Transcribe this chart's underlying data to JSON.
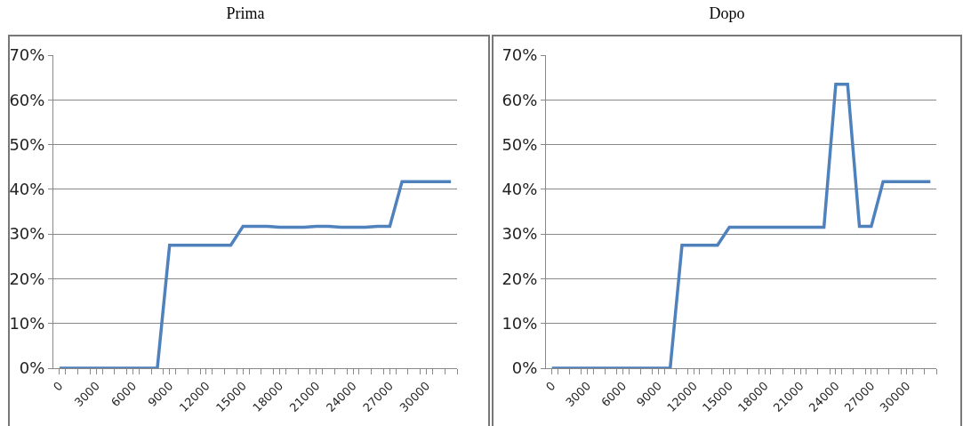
{
  "chart_data": [
    {
      "type": "line",
      "title": "Prima",
      "categories": [
        "0",
        null,
        null,
        "3000",
        null,
        null,
        "6000",
        null,
        null,
        "9000",
        null,
        null,
        "12000",
        null,
        null,
        "15000",
        null,
        null,
        "18000",
        null,
        null,
        "21000",
        null,
        null,
        "24000",
        null,
        null,
        "27000",
        null,
        null,
        "30000",
        null,
        null
      ],
      "series": [
        {
          "color": "#4f81bd",
          "values": [
            0,
            0,
            0,
            0,
            0,
            0,
            0,
            0,
            0,
            27.5,
            27.5,
            27.5,
            27.5,
            27.5,
            27.5,
            31.7,
            31.7,
            31.7,
            31.5,
            31.5,
            31.5,
            31.7,
            31.7,
            31.5,
            31.5,
            31.5,
            31.7,
            31.7,
            41.7,
            41.7,
            41.7,
            41.7,
            41.7
          ]
        }
      ],
      "ylim": [
        0,
        70
      ],
      "yticks": [
        {
          "value": 0,
          "label": "0%"
        },
        {
          "value": 10,
          "label": "10%"
        },
        {
          "value": 20,
          "label": "20%"
        },
        {
          "value": 30,
          "label": "30%"
        },
        {
          "value": 40,
          "label": "40%"
        },
        {
          "value": 50,
          "label": "50%"
        },
        {
          "value": 60,
          "label": "60%"
        },
        {
          "value": 70,
          "label": "70%"
        }
      ],
      "grid": "y",
      "marker": "none",
      "line_style": "solid"
    },
    {
      "type": "line",
      "title": "Dopo",
      "categories": [
        "0",
        null,
        null,
        "3000",
        null,
        null,
        "6000",
        null,
        null,
        "9000",
        null,
        null,
        "12000",
        null,
        null,
        "15000",
        null,
        null,
        "18000",
        null,
        null,
        "21000",
        null,
        null,
        "24000",
        null,
        null,
        "27000",
        null,
        null,
        "30000",
        null,
        null
      ],
      "series": [
        {
          "color": "#4f81bd",
          "values": [
            0,
            0,
            0,
            0,
            0,
            0,
            0,
            0,
            0,
            0,
            0,
            27.5,
            27.5,
            27.5,
            27.5,
            31.5,
            31.5,
            31.5,
            31.5,
            31.5,
            31.5,
            31.5,
            31.5,
            31.5,
            63.5,
            63.5,
            31.7,
            31.7,
            41.7,
            41.7,
            41.7,
            41.7,
            41.7
          ]
        }
      ],
      "ylim": [
        0,
        70
      ],
      "yticks": [
        {
          "value": 0,
          "label": "0%"
        },
        {
          "value": 10,
          "label": "10%"
        },
        {
          "value": 20,
          "label": "20%"
        },
        {
          "value": 30,
          "label": "30%"
        },
        {
          "value": 40,
          "label": "40%"
        },
        {
          "value": 50,
          "label": "50%"
        },
        {
          "value": 60,
          "label": "60%"
        },
        {
          "value": 70,
          "label": "70%"
        }
      ],
      "grid": "y",
      "marker": "none",
      "line_style": "solid"
    }
  ]
}
